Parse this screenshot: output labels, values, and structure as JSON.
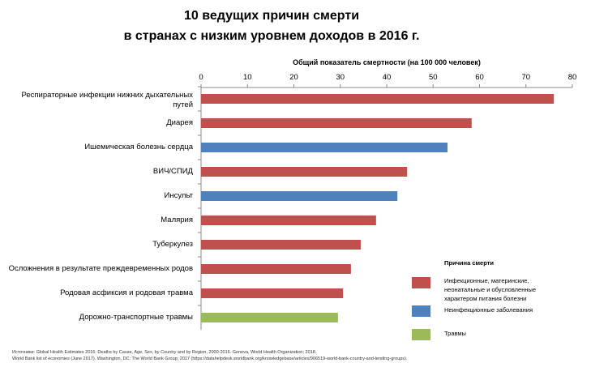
{
  "chart_data": {
    "type": "bar",
    "orientation": "horizontal",
    "title": [
      "10 ведущих причин смерти",
      "в странах с низким уровнем доходов в 2016 г."
    ],
    "xlabel": "Общий показатель смертности (на 100 000 человек)",
    "xlim": [
      0,
      80
    ],
    "xticks": [
      0,
      10,
      20,
      30,
      40,
      50,
      60,
      70,
      80
    ],
    "grid": false,
    "legend_placement": "bottom-right",
    "legend_title": "Причина смерти",
    "groups": [
      {
        "name": "Инфекционные, материнские, неонатальные и обусловленные характером питания болезни",
        "color": "#c0504d"
      },
      {
        "name": "Неинфекционные заболевания",
        "color": "#4f81bd"
      },
      {
        "name": "Травмы",
        "color": "#9bbb59"
      }
    ],
    "categories": [
      "Респираторные инфекции нижних дыхательных путей",
      "Диарея",
      "Ишемическая болезнь сердца",
      "ВИЧ/СПИД",
      "Инсульт",
      "Малярия",
      "Туберкулез",
      "Осложнения в результате преждевременных родов",
      "Родовая асфиксия и родовая травма",
      "Дорожно-транспортные травмы"
    ],
    "values": [
      76.0,
      58.3,
      53.1,
      44.4,
      42.3,
      37.7,
      34.4,
      32.3,
      30.6,
      29.5
    ],
    "group_index": [
      0,
      0,
      1,
      0,
      1,
      0,
      0,
      0,
      0,
      2
    ]
  },
  "sources": [
    "Источники: Global Health Estimates 2016: Deaths by Cause, Age, Sex, by Country and by Region, 2000-2016. Geneva, World Health Organization; 2018.",
    "World Bank list of economies (June 2017). Washington, DC: The World Bank Group; 2017 (https://datahelpdesk.worldbank.org/knowledgebase/articles/906519-world-bank-country-and-lending-groups)."
  ]
}
